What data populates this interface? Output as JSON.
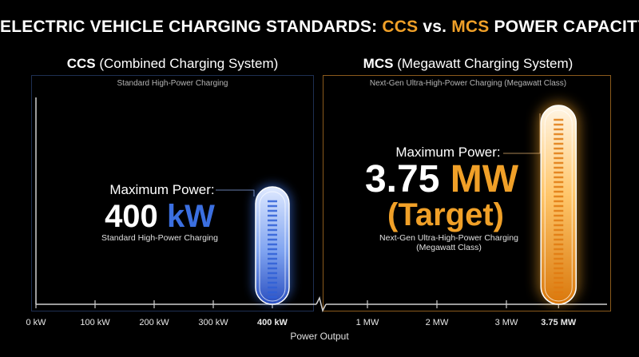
{
  "title": {
    "prefix": "ELECTRIC VEHICLE CHARGING STANDARDS: ",
    "ccs": "CCS",
    "vs": " vs. ",
    "mcs": "MCS",
    "suffix": " POWER CAPACITY"
  },
  "panels": {
    "ccs": {
      "name": "CCS",
      "full_name": "(Combined Charging System)",
      "subtitle": "Standard High-Power Charging",
      "max_label": "Maximum Power:",
      "value_number": "400",
      "value_unit": "kW",
      "description": "Standard High-Power Charging",
      "color": "#3b6fe0"
    },
    "mcs": {
      "name": "MCS",
      "full_name": "(Megawatt Charging System)",
      "subtitle": "Next-Gen Ultra-High-Power Charging (Megawatt Class)",
      "max_label": "Maximum Power:",
      "value_number": "3.75",
      "value_unit": "MW",
      "value_note": "(Target)",
      "description_line1": "Next-Gen Ultra-High-Power Charging",
      "description_line2": "(Megawatt Class)",
      "color": "#f0a028"
    }
  },
  "chart_data": {
    "type": "bar",
    "xlabel": "Power Output",
    "broken_axis": true,
    "segments": [
      {
        "name": "CCS",
        "ticks": [
          "0 kW",
          "100 kW",
          "200 kW",
          "300 kW",
          "400 kW"
        ],
        "tick_values_kw": [
          0,
          100,
          200,
          300,
          400
        ],
        "range_kw": [
          0,
          420
        ],
        "bar_value_kw": 400
      },
      {
        "name": "MCS",
        "ticks": [
          "1 MW",
          "2 MW",
          "3 MW",
          "3.75 MW"
        ],
        "tick_values_mw": [
          1,
          2,
          3,
          3.75
        ],
        "range_mw": [
          0.5,
          4.0
        ],
        "bar_value_mw": 3.75
      }
    ],
    "series": [
      {
        "name": "CCS",
        "value": 400,
        "unit": "kW",
        "color": "#3b6fe0"
      },
      {
        "name": "MCS",
        "value": 3.75,
        "unit": "MW",
        "color": "#f0a028"
      }
    ]
  }
}
